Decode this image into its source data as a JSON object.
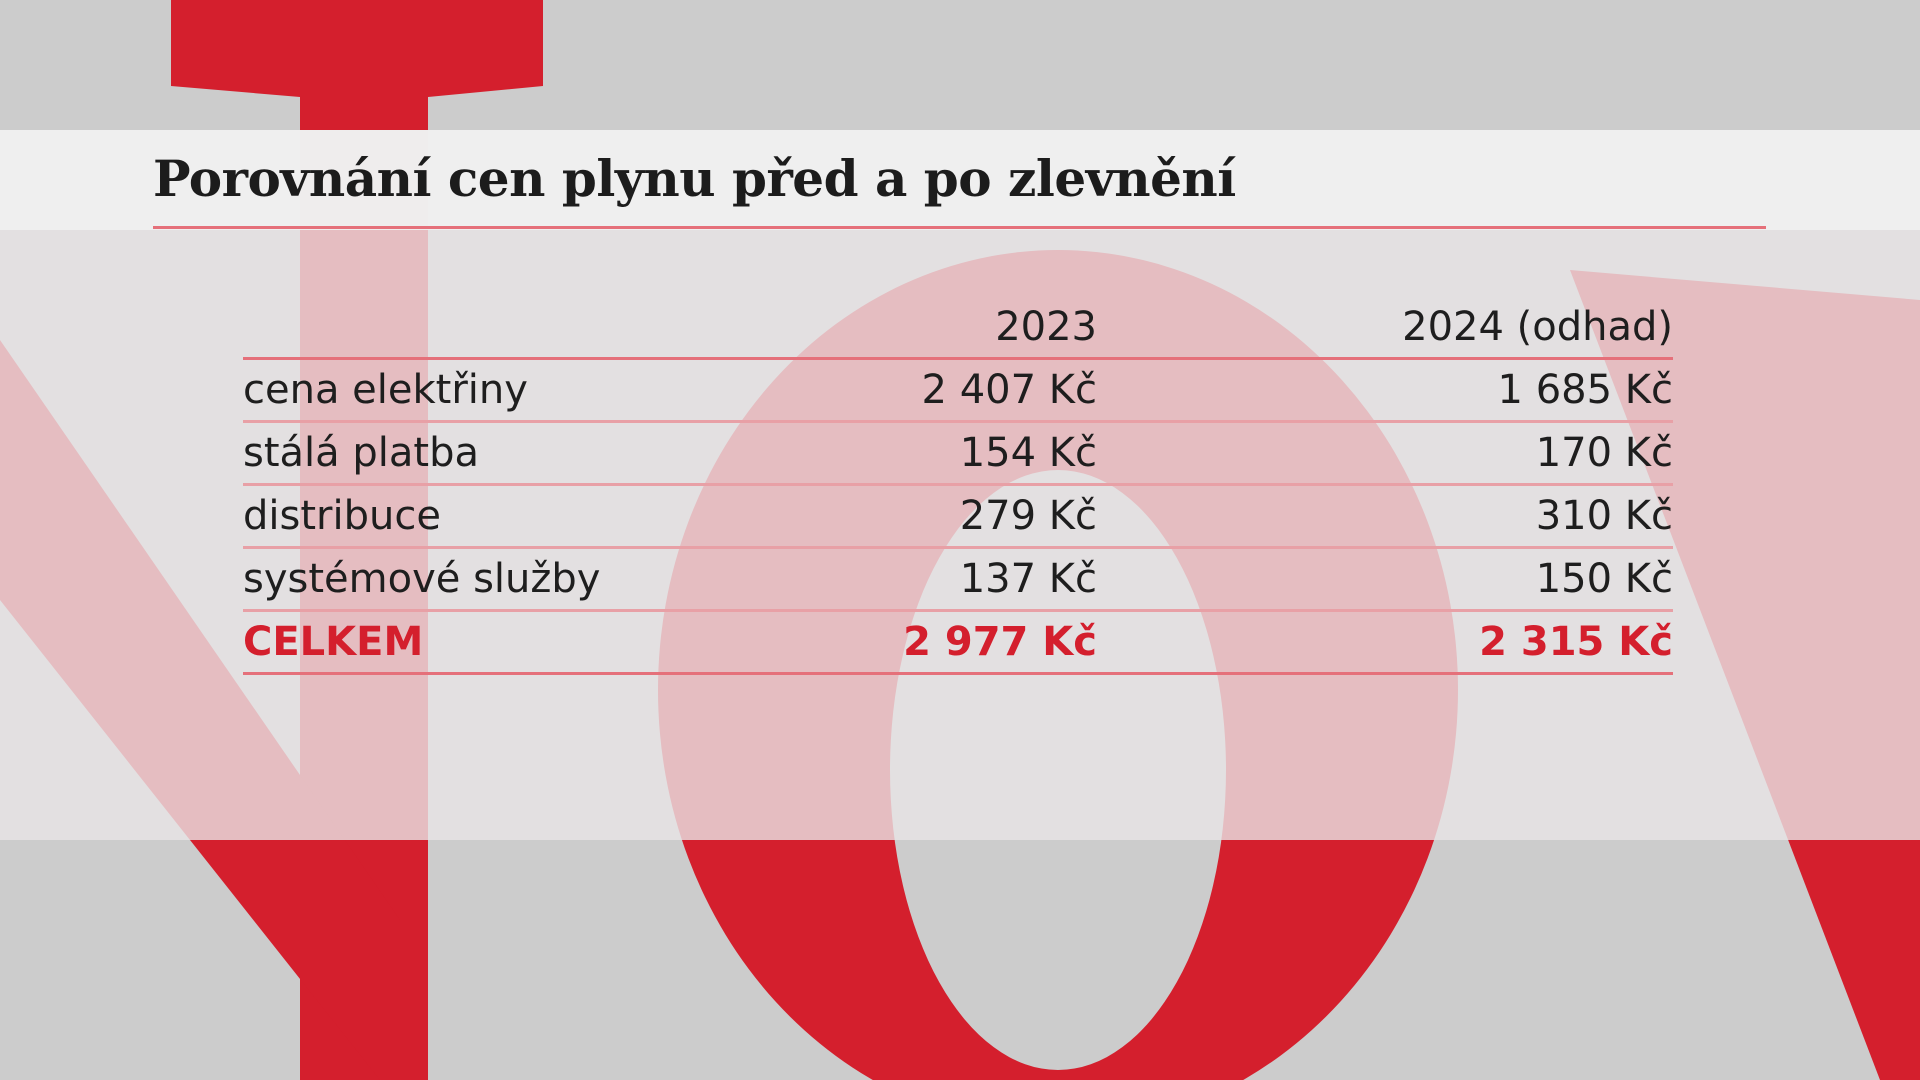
{
  "title": "Porovnání cen plynu před a po zlevnění",
  "table": {
    "columns": [
      "",
      "2023",
      "2024 (odhad)"
    ],
    "rows": [
      {
        "label": "cena elektřiny",
        "y2023": "2 407 Kč",
        "y2024": "1 685 Kč"
      },
      {
        "label": "stálá platba",
        "y2023": "154 Kč",
        "y2024": "170 Kč"
      },
      {
        "label": "distribuce",
        "y2023": "279 Kč",
        "y2024": "310 Kč"
      },
      {
        "label": "systémové služby",
        "y2023": "137 Kč",
        "y2024": "150 Kč"
      }
    ],
    "total": {
      "label": "CELKEM",
      "y2023": "2 977 Kč",
      "y2024": "2 315 Kč"
    }
  },
  "colors": {
    "brand_red": "#d41f2d",
    "background_gray": "#cccccc",
    "rule_pink": "#e5707a"
  }
}
